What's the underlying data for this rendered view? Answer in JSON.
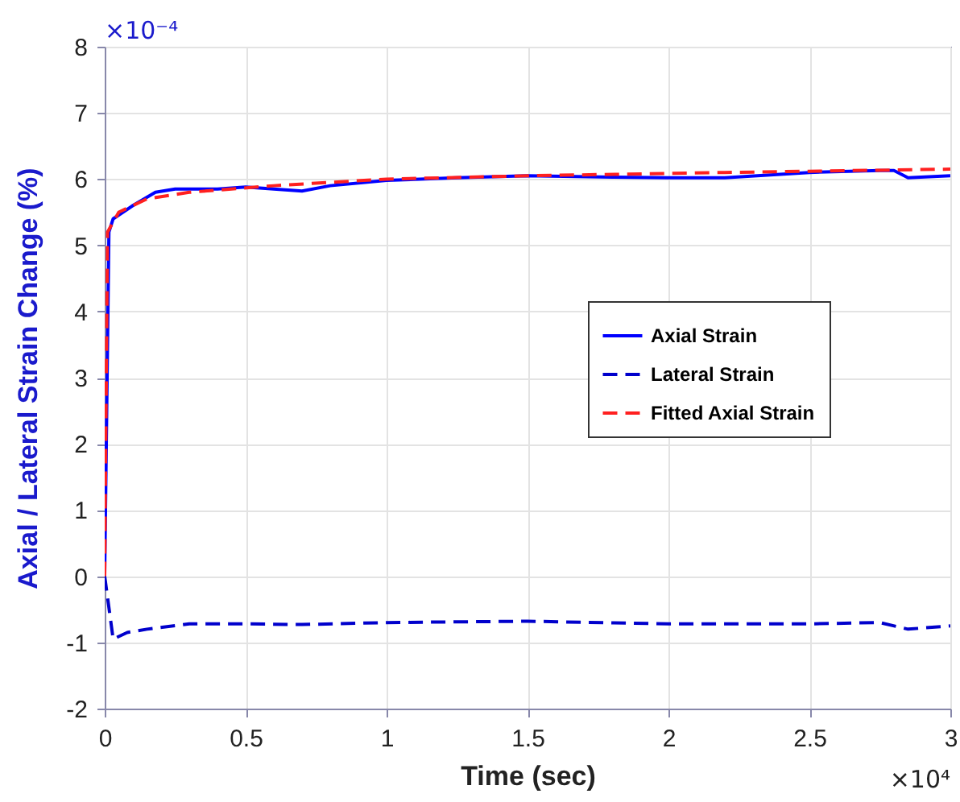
{
  "chart_data": {
    "type": "line",
    "xlabel": "Time (sec)",
    "ylabel": "Axial / Lateral Strain Change (%)",
    "annotations": [
      "×10⁻⁴",
      "×10⁴"
    ],
    "xlim": [
      0,
      3
    ],
    "ylim": [
      -2,
      8
    ],
    "xticks": [
      0,
      0.5,
      1,
      1.5,
      2,
      2.5,
      3
    ],
    "yticks": [
      -2,
      -1,
      0,
      1,
      2,
      3,
      4,
      5,
      6,
      7,
      8
    ],
    "grid": true,
    "legend": "right",
    "series": [
      {
        "name": "Axial Strain",
        "color": "#0000ff",
        "line_style": "solid",
        "x": [
          0,
          0.015,
          0.03,
          0.1,
          0.18,
          0.25,
          0.4,
          0.5,
          0.6,
          0.7,
          0.8,
          1,
          1.25,
          1.5,
          1.8,
          2,
          2.2,
          2.5,
          2.75,
          2.8,
          2.85,
          3
        ],
        "values": [
          0,
          5.2,
          5.4,
          5.6,
          5.8,
          5.85,
          5.85,
          5.88,
          5.85,
          5.82,
          5.9,
          5.98,
          6.02,
          6.05,
          6.03,
          6.02,
          6.02,
          6.1,
          6.13,
          6.13,
          6.02,
          6.05
        ]
      },
      {
        "name": "Lateral Strain",
        "color": "#0000cc",
        "line_style": "dashed",
        "x": [
          0,
          0.03,
          0.08,
          0.15,
          0.3,
          0.5,
          0.7,
          1,
          1.5,
          2,
          2.5,
          2.75,
          2.85,
          3
        ],
        "values": [
          0,
          -0.95,
          -0.85,
          -0.8,
          -0.72,
          -0.72,
          -0.73,
          -0.7,
          -0.68,
          -0.72,
          -0.72,
          -0.7,
          -0.8,
          -0.75
        ]
      },
      {
        "name": "Fitted Axial Strain",
        "color": "#ff2020",
        "line_style": "dashed",
        "x": [
          0,
          0.01,
          0.05,
          0.15,
          0.3,
          0.6,
          1,
          1.5,
          2.2,
          3
        ],
        "values": [
          0,
          5.2,
          5.5,
          5.7,
          5.8,
          5.9,
          6.0,
          6.05,
          6.1,
          6.15
        ]
      }
    ]
  }
}
